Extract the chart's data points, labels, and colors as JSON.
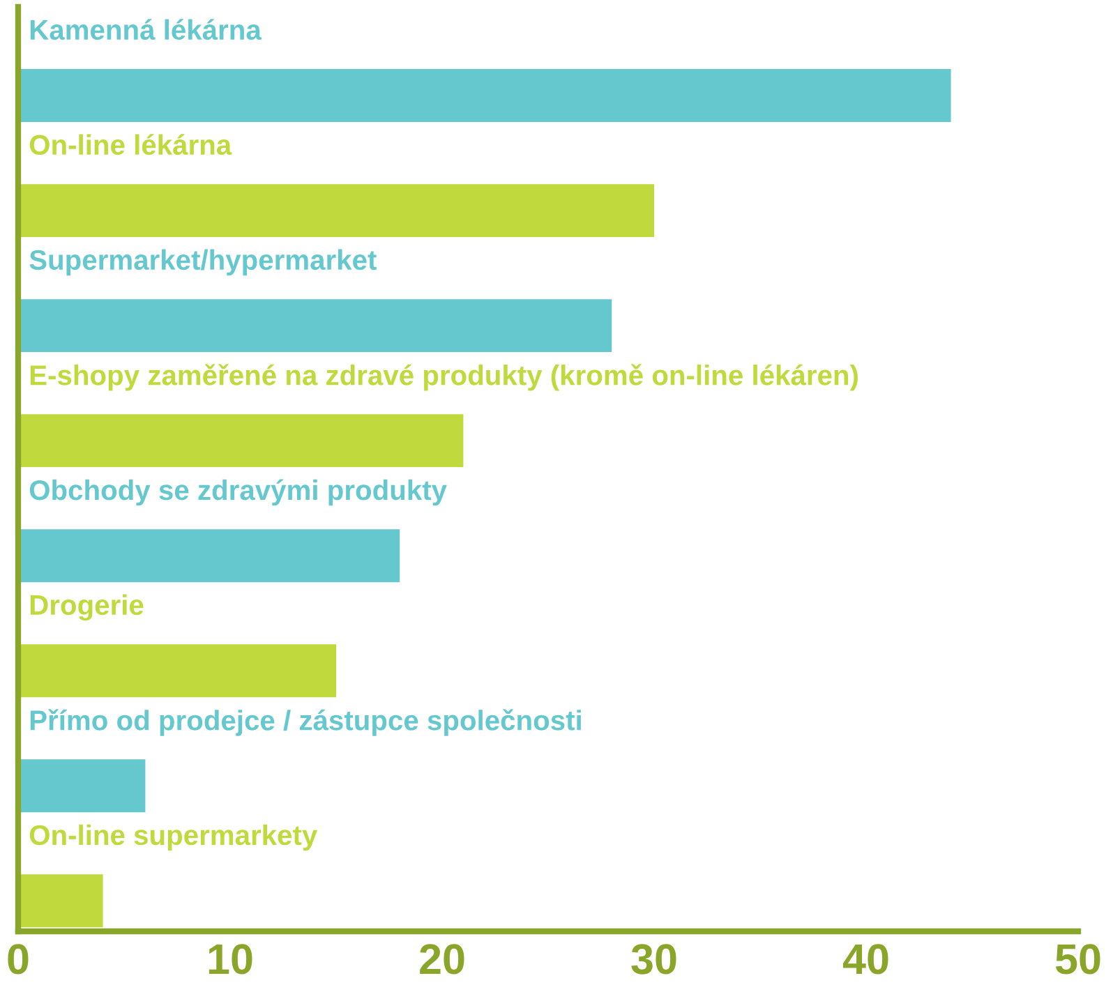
{
  "chart_data": {
    "type": "bar",
    "orientation": "horizontal",
    "categories": [
      "Kamenná lékárna",
      "On-line lékárna",
      "Supermarket/hypermarket",
      "E-shopy zaměřené na zdravé produkty (kromě on-line lékáren)",
      "Obchody se zdravými produkty",
      "Drogerie",
      "Přímo od prodejce / zástupce společnosti",
      "On-line supermarkety"
    ],
    "values": [
      44,
      30,
      28,
      21,
      18,
      15,
      6,
      4
    ],
    "colors": [
      "#66c8cf",
      "#c0d93c",
      "#66c8cf",
      "#c0d93c",
      "#66c8cf",
      "#c0d93c",
      "#66c8cf",
      "#c0d93c"
    ],
    "xlim": [
      0,
      50
    ],
    "xticks": [
      0,
      10,
      20,
      30,
      40,
      50
    ],
    "grid": false,
    "legend": false
  }
}
